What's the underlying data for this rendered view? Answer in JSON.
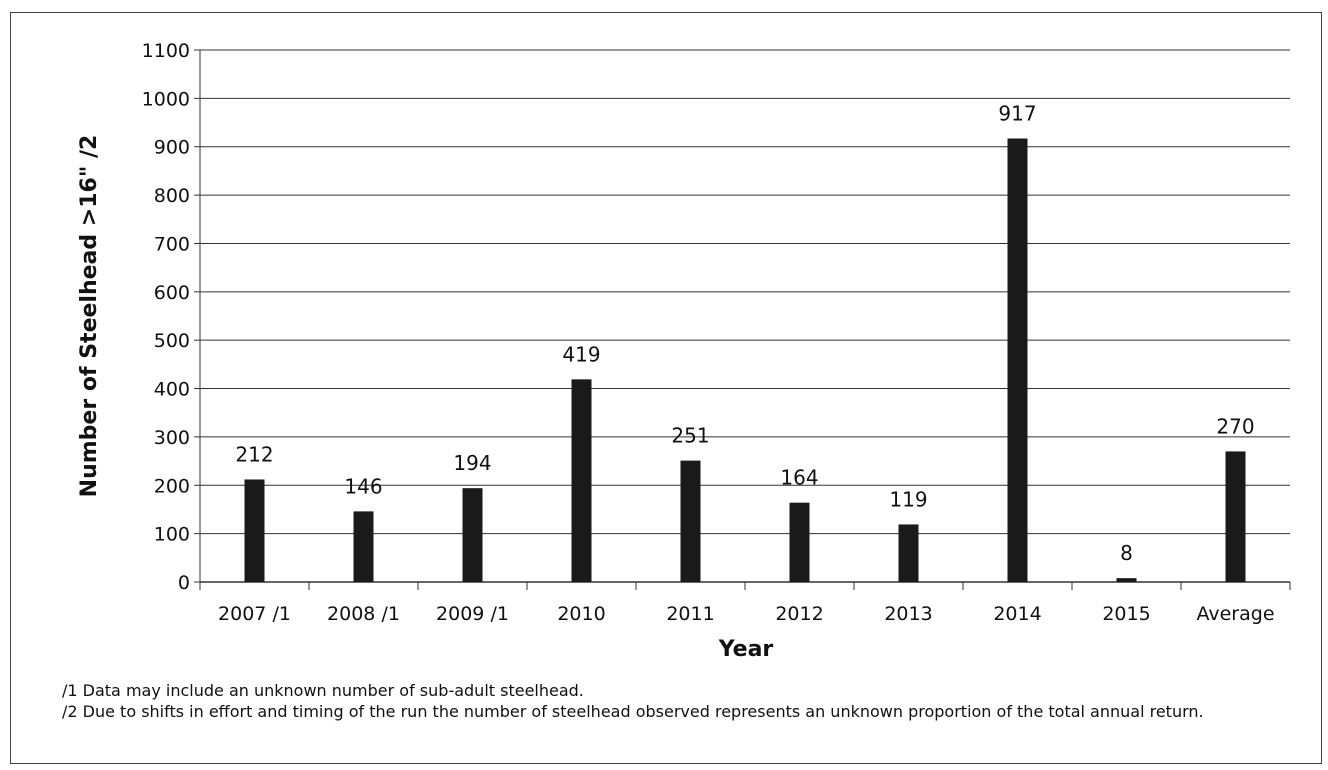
{
  "chart_data": {
    "type": "bar",
    "title": "",
    "xlabel": "Year",
    "ylabel": "Number of Steelhead >16\" /2",
    "categories": [
      "2007 /1",
      "2008 /1",
      "2009 /1",
      "2010",
      "2011",
      "2012",
      "2013",
      "2014",
      "2015",
      "Average"
    ],
    "values": [
      212,
      146,
      194,
      419,
      251,
      164,
      119,
      917,
      8,
      270
    ],
    "data_labels": [
      "212",
      "146",
      "194",
      "419",
      "251",
      "164",
      "119",
      "917",
      "8",
      "270"
    ],
    "ylim": [
      0,
      1100
    ],
    "yticks": [
      "0",
      "100",
      "200",
      "300",
      "400",
      "500",
      "600",
      "700",
      "800",
      "900",
      "1000",
      "1100"
    ],
    "grid": true,
    "legend": "none",
    "bar_color": "#1a1a1a"
  },
  "footnotes": [
    "/1 Data may include an unknown number of sub-adult steelhead.",
    "/2  Due to shifts in effort and timing of the run the number of steelhead observed represents an unknown proportion of the total annual return."
  ]
}
